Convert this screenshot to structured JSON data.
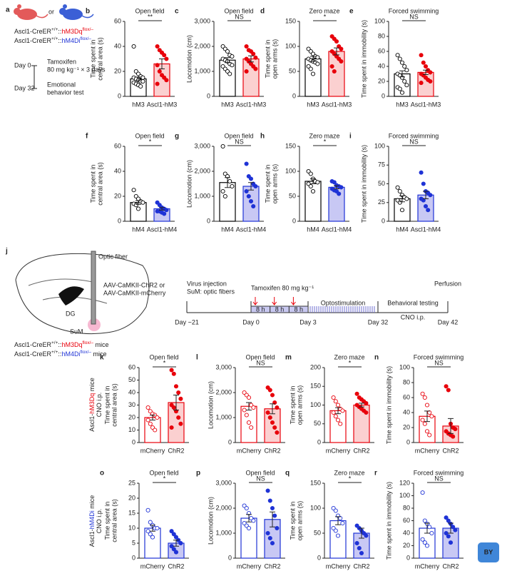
{
  "panel_a": {
    "letter": "a",
    "or": "or",
    "genotypes": [
      [
        {
          "text": "Ascl1-CreER"
        },
        {
          "text": "+/+",
          "sup": true
        },
        {
          "text": "::"
        },
        {
          "text": "hM3Dq",
          "color": "#e8000b"
        },
        {
          "text": "flox/–",
          "sup": true,
          "color": "#e8000b"
        }
      ],
      [
        {
          "text": "Ascl1-CreER"
        },
        {
          "text": "+/+",
          "sup": true
        },
        {
          "text": "::"
        },
        {
          "text": "hM4Di",
          "color": "#1f33d6"
        },
        {
          "text": "flox/–",
          "sup": true,
          "color": "#1f33d6"
        }
      ]
    ],
    "timeline": [
      {
        "day": "Day 0",
        "event": [
          "Tamoxifen",
          "80 mg kg⁻¹ × 3 days"
        ]
      },
      {
        "day": "Day 32",
        "event": [
          "Emotional",
          "behavior test"
        ]
      }
    ]
  },
  "panel_j": {
    "letter": "j",
    "optic_fiber": "Optic fiber",
    "virus": [
      "AAV-CaMKII-ChR2 or",
      "AAV-CaMKII-mCherry"
    ],
    "regions": [
      "DG",
      "SuM"
    ],
    "mice": [
      [
        {
          "text": "Ascl1-CreER"
        },
        {
          "text": "+/+",
          "sup": true
        },
        {
          "text": "::"
        },
        {
          "text": "hM3Dq",
          "color": "#e8000b"
        },
        {
          "text": "flox/–",
          "sup": true,
          "color": "#e8000b"
        },
        {
          "text": " mice"
        }
      ],
      [
        {
          "text": "Ascl1-CreER"
        },
        {
          "text": "+/+",
          "sup": true
        },
        {
          "text": "::"
        },
        {
          "text": "hM4Di",
          "color": "#1f33d6"
        },
        {
          "text": "flox/–",
          "sup": true,
          "color": "#1f33d6"
        },
        {
          "text": " mice"
        }
      ]
    ],
    "days": [
      "Day ~21",
      "Day 0",
      "Day 3",
      "Day 32",
      "Day 42"
    ],
    "blocks": [
      "8 h",
      "8 h",
      "8 h"
    ],
    "virus_injection": [
      "Virus injection",
      "SuM: optic fibers"
    ],
    "tamoxifen": "Tamoxifen 80 mg kg⁻¹",
    "optostimulation": "Optostimulation",
    "behavior": [
      "Behavioral testing",
      "CNO i.p."
    ],
    "perfusion": "Perfusion"
  },
  "row_labels": [
    [
      [
        {
          "text": "Ascl1-"
        },
        {
          "text": "hM3Dq",
          "color": "#e8000b"
        },
        {
          "text": " mice"
        }
      ],
      [
        {
          "text": "CNO i.p."
        }
      ]
    ],
    [
      [
        {
          "text": "Ascl1-"
        },
        {
          "text": "hM4Di",
          "color": "#1f33d6"
        },
        {
          "text": " mice"
        }
      ],
      [
        {
          "text": "CNO i.p."
        }
      ]
    ]
  ],
  "watermark": "BY",
  "chart_data": [
    {
      "type": "bar",
      "panel": "b",
      "title": "Open field",
      "ylabel": [
        "Time spent in",
        "central area (s)"
      ],
      "categories": [
        "hM3",
        "Ascl1-hM3"
      ],
      "values": [
        14,
        26
      ],
      "errors": [
        1.5,
        4
      ],
      "points": [
        [
          40,
          20,
          18,
          16,
          15,
          15,
          14,
          13,
          12,
          12,
          11,
          10,
          9,
          8
        ],
        [
          40,
          37,
          35,
          33,
          30,
          25,
          20,
          17,
          15,
          13,
          10
        ]
      ],
      "colors": [
        "#000000",
        "#e8000b"
      ],
      "fills": [
        "#ffffff",
        "#fbd0d0"
      ],
      "hollow": [
        true,
        false
      ],
      "ylim": [
        0,
        60
      ],
      "yticks": [
        0,
        20,
        40,
        60
      ],
      "significance": "**"
    },
    {
      "type": "bar",
      "panel": "c",
      "title": "Open field",
      "ylabel": [
        "Locomotion (cm)"
      ],
      "categories": [
        "hM3",
        "Ascl1-hM3"
      ],
      "values": [
        1450,
        1500
      ],
      "errors": [
        100,
        120
      ],
      "points": [
        [
          2000,
          1900,
          1800,
          1650,
          1600,
          1500,
          1450,
          1400,
          1300,
          1250,
          1200,
          1100,
          1000,
          900
        ],
        [
          2000,
          1850,
          1800,
          1700,
          1550,
          1500,
          1400,
          1300,
          1200,
          1100,
          1000
        ]
      ],
      "colors": [
        "#000000",
        "#e8000b"
      ],
      "fills": [
        "#ffffff",
        "#fbd0d0"
      ],
      "hollow": [
        true,
        false
      ],
      "ylim": [
        0,
        3000
      ],
      "yticks": [
        0,
        {
          "value": 1000,
          "label": "1,000"
        },
        {
          "value": 2000,
          "label": "2,000"
        },
        {
          "value": 3000,
          "label": "3,000"
        }
      ],
      "significance": "NS"
    },
    {
      "type": "bar",
      "panel": "d",
      "title": "Zero maze",
      "ylabel": [
        "Time spent in",
        "open arms (s)"
      ],
      "categories": [
        "hM3",
        "Ascl1-hM3"
      ],
      "values": [
        75,
        90
      ],
      "errors": [
        5,
        7
      ],
      "points": [
        [
          95,
          90,
          85,
          80,
          78,
          75,
          72,
          70,
          68,
          65,
          60,
          55,
          45
        ],
        [
          120,
          115,
          110,
          100,
          95,
          90,
          85,
          80,
          75,
          70,
          60,
          50
        ]
      ],
      "colors": [
        "#000000",
        "#e8000b"
      ],
      "fills": [
        "#ffffff",
        "#fbd0d0"
      ],
      "hollow": [
        true,
        false
      ],
      "ylim": [
        0,
        150
      ],
      "yticks": [
        0,
        50,
        100,
        150
      ],
      "significance": "*"
    },
    {
      "type": "bar",
      "panel": "e",
      "title": "Forced swimming",
      "ylabel": [
        "Time spent in immobility (s)"
      ],
      "categories": [
        "hM3",
        "Ascl1-hM3"
      ],
      "values": [
        30,
        32
      ],
      "errors": [
        4,
        3
      ],
      "points": [
        [
          55,
          50,
          45,
          40,
          35,
          30,
          28,
          25,
          20,
          15,
          12,
          10,
          5
        ],
        [
          55,
          45,
          40,
          35,
          32,
          30,
          28,
          25,
          22,
          20,
          18
        ]
      ],
      "colors": [
        "#000000",
        "#e8000b"
      ],
      "fills": [
        "#ffffff",
        "#fbd0d0"
      ],
      "hollow": [
        true,
        false
      ],
      "ylim": [
        0,
        100
      ],
      "yticks": [
        0,
        20,
        40,
        60,
        80,
        100
      ],
      "significance": "NS"
    },
    {
      "type": "bar",
      "panel": "f",
      "title": "Open field",
      "ylabel": [
        "Time spent in",
        "central area (s)"
      ],
      "categories": [
        "hM4",
        "Ascl1-hM4"
      ],
      "values": [
        15,
        10
      ],
      "errors": [
        1.5,
        1
      ],
      "points": [
        [
          25,
          20,
          18,
          16,
          15,
          14,
          13,
          10
        ],
        [
          15,
          13,
          11,
          10,
          9,
          8,
          8,
          7,
          6
        ]
      ],
      "colors": [
        "#000000",
        "#1f33d6"
      ],
      "fills": [
        "#ffffff",
        "#c8c8f4"
      ],
      "hollow": [
        true,
        false
      ],
      "ylim": [
        0,
        60
      ],
      "yticks": [
        0,
        20,
        40,
        60
      ],
      "significance": "*"
    },
    {
      "type": "bar",
      "panel": "g",
      "title": "Open field",
      "ylabel": [
        "Locomotion (cm)"
      ],
      "categories": [
        "hM4",
        "Ascl1-hM4"
      ],
      "values": [
        1550,
        1400
      ],
      "errors": [
        200,
        150
      ],
      "points": [
        [
          3000,
          1900,
          1800,
          1600,
          1400,
          1200,
          1000
        ],
        [
          2300,
          1800,
          1700,
          1500,
          1400,
          1200,
          1000,
          800,
          600
        ]
      ],
      "colors": [
        "#000000",
        "#1f33d6"
      ],
      "fills": [
        "#ffffff",
        "#c8c8f4"
      ],
      "hollow": [
        true,
        false
      ],
      "ylim": [
        0,
        3000
      ],
      "yticks": [
        0,
        {
          "value": 1000,
          "label": "1,000"
        },
        {
          "value": 2000,
          "label": "2,000"
        },
        {
          "value": 3000,
          "label": "3,000"
        }
      ],
      "significance": "NS"
    },
    {
      "type": "bar",
      "panel": "h",
      "title": "Zero maze",
      "ylabel": [
        "Time spent in",
        "open arms (s)"
      ],
      "categories": [
        "hM4",
        "Ascl1-hM4"
      ],
      "values": [
        80,
        68
      ],
      "errors": [
        5,
        3
      ],
      "points": [
        [
          100,
          95,
          85,
          80,
          78,
          75,
          70,
          60
        ],
        [
          80,
          78,
          72,
          70,
          68,
          65,
          62,
          60,
          55
        ]
      ],
      "colors": [
        "#000000",
        "#1f33d6"
      ],
      "fills": [
        "#ffffff",
        "#c8c8f4"
      ],
      "hollow": [
        true,
        false
      ],
      "ylim": [
        0,
        150
      ],
      "yticks": [
        0,
        50,
        100,
        150
      ],
      "significance": "*"
    },
    {
      "type": "bar",
      "panel": "i",
      "title": "Forced swimming",
      "ylabel": [
        "Time spent in immobility (s)"
      ],
      "categories": [
        "hM4",
        "Ascl1-hM4"
      ],
      "values": [
        30,
        35
      ],
      "errors": [
        4,
        5
      ],
      "points": [
        [
          45,
          40,
          35,
          32,
          30,
          28,
          25,
          15
        ],
        [
          65,
          50,
          40,
          38,
          35,
          30,
          28,
          20,
          15
        ]
      ],
      "colors": [
        "#000000",
        "#1f33d6"
      ],
      "fills": [
        "#ffffff",
        "#c8c8f4"
      ],
      "hollow": [
        true,
        false
      ],
      "ylim": [
        0,
        100
      ],
      "yticks": [
        0,
        25,
        50,
        75,
        100
      ],
      "significance": "NS"
    },
    {
      "type": "bar",
      "panel": "k",
      "title": "Open field",
      "ylabel": [
        "Time spent in",
        "central area (s)"
      ],
      "categories": [
        "mCherry",
        "ChR2"
      ],
      "values": [
        20,
        32
      ],
      "errors": [
        2,
        6
      ],
      "points": [
        [
          28,
          25,
          23,
          22,
          20,
          18,
          15,
          12,
          10
        ],
        [
          58,
          55,
          45,
          40,
          35,
          30,
          28,
          25,
          20,
          15,
          12
        ]
      ],
      "colors": [
        "#e8000b",
        "#e8000b"
      ],
      "fills": [
        "#ffffff",
        "#fbd0d0"
      ],
      "hollow": [
        true,
        false
      ],
      "ylim": [
        0,
        60
      ],
      "yticks": [
        0,
        10,
        20,
        30,
        40,
        50,
        60
      ],
      "significance": "*"
    },
    {
      "type": "bar",
      "panel": "l",
      "title": "Open field",
      "ylabel": [
        "Locomotion (cm)"
      ],
      "categories": [
        "mCherry",
        "ChR2"
      ],
      "values": [
        1450,
        1350
      ],
      "errors": [
        150,
        200
      ],
      "points": [
        [
          2000,
          1900,
          1800,
          1500,
          1400,
          1300,
          1100,
          800,
          600
        ],
        [
          2200,
          2100,
          1900,
          1600,
          1400,
          1200,
          1000,
          800,
          600,
          400
        ]
      ],
      "colors": [
        "#e8000b",
        "#e8000b"
      ],
      "fills": [
        "#ffffff",
        "#fbd0d0"
      ],
      "hollow": [
        true,
        false
      ],
      "ylim": [
        0,
        3000
      ],
      "yticks": [
        0,
        {
          "value": 1000,
          "label": "1,000"
        },
        {
          "value": 2000,
          "label": "2,000"
        },
        {
          "value": 3000,
          "label": "3,000"
        }
      ],
      "significance": "NS"
    },
    {
      "type": "bar",
      "panel": "m",
      "title": "Zero maze",
      "ylabel": [
        "Time spent in",
        "open arms (s)"
      ],
      "categories": [
        "mCherry",
        "ChR2"
      ],
      "values": [
        85,
        100
      ],
      "errors": [
        8,
        5
      ],
      "points": [
        [
          120,
          110,
          100,
          90,
          85,
          80,
          70,
          60,
          50
        ],
        [
          130,
          120,
          115,
          110,
          105,
          100,
          95,
          90,
          85,
          80
        ]
      ],
      "colors": [
        "#e8000b",
        "#e8000b"
      ],
      "fills": [
        "#ffffff",
        "#fbd0d0"
      ],
      "hollow": [
        true,
        false
      ],
      "ylim": [
        0,
        200
      ],
      "yticks": [
        0,
        50,
        100,
        150,
        200
      ],
      "significance": "*"
    },
    {
      "type": "bar",
      "panel": "n",
      "title": "Forced swimming",
      "ylabel": [
        "Time spent in immobility (s)"
      ],
      "categories": [
        "mCherry",
        "ChR2"
      ],
      "values": [
        35,
        22
      ],
      "errors": [
        7,
        10
      ],
      "points": [
        [
          65,
          60,
          50,
          40,
          35,
          30,
          25,
          15,
          10
        ],
        [
          75,
          70,
          25,
          20,
          18,
          15,
          12,
          10,
          8
        ]
      ],
      "colors": [
        "#e8000b",
        "#e8000b"
      ],
      "fills": [
        "#ffffff",
        "#fbd0d0"
      ],
      "hollow": [
        true,
        false
      ],
      "ylim": [
        0,
        100
      ],
      "yticks": [
        0,
        20,
        40,
        60,
        80,
        100
      ],
      "significance": "NS"
    },
    {
      "type": "bar",
      "panel": "o",
      "title": "Open field",
      "ylabel": [
        "Time spent in",
        "central area (s)"
      ],
      "categories": [
        "mCherry",
        "ChR2"
      ],
      "values": [
        10,
        5
      ],
      "errors": [
        1,
        1
      ],
      "points": [
        [
          16,
          12,
          11,
          10,
          10,
          9,
          8,
          7
        ],
        [
          9,
          8,
          7,
          6,
          5,
          4,
          3,
          2
        ]
      ],
      "colors": [
        "#1f33d6",
        "#1f33d6"
      ],
      "fills": [
        "#ffffff",
        "#c8c8f4"
      ],
      "hollow": [
        true,
        false
      ],
      "ylim": [
        0,
        25
      ],
      "yticks": [
        0,
        5,
        10,
        15,
        20,
        25
      ],
      "significance": "*"
    },
    {
      "type": "bar",
      "panel": "p",
      "title": "Open field",
      "ylabel": [
        "Locomotion (cm)"
      ],
      "categories": [
        "mCherry",
        "ChR2"
      ],
      "values": [
        1600,
        1550
      ],
      "errors": [
        150,
        300
      ],
      "points": [
        [
          2100,
          2000,
          1800,
          1600,
          1500,
          1400,
          1300,
          1200
        ],
        [
          2700,
          2300,
          2000,
          1700,
          1200,
          1000,
          800,
          600
        ]
      ],
      "colors": [
        "#1f33d6",
        "#1f33d6"
      ],
      "fills": [
        "#ffffff",
        "#c8c8f4"
      ],
      "hollow": [
        true,
        false
      ],
      "ylim": [
        0,
        3000
      ],
      "yticks": [
        0,
        {
          "value": 1000,
          "label": "1,000"
        },
        {
          "value": 2000,
          "label": "2,000"
        },
        {
          "value": 3000,
          "label": "3,000"
        }
      ],
      "significance": "NS"
    },
    {
      "type": "bar",
      "panel": "q",
      "title": "Zero maze",
      "ylabel": [
        "Time spent in",
        "open arms (s)"
      ],
      "categories": [
        "mCherry",
        "ChR2"
      ],
      "values": [
        75,
        50
      ],
      "errors": [
        8,
        10
      ],
      "points": [
        [
          100,
          95,
          85,
          80,
          70,
          60,
          55,
          45
        ],
        [
          65,
          60,
          55,
          50,
          45,
          30,
          20,
          10
        ]
      ],
      "colors": [
        "#1f33d6",
        "#1f33d6"
      ],
      "fills": [
        "#ffffff",
        "#c8c8f4"
      ],
      "hollow": [
        true,
        false
      ],
      "ylim": [
        0,
        150
      ],
      "yticks": [
        0,
        50,
        100,
        150
      ],
      "significance": "*"
    },
    {
      "type": "bar",
      "panel": "r",
      "title": "Forced swimming",
      "ylabel": [
        "Time spent in immobility (s)"
      ],
      "categories": [
        "mCherry",
        "ChR2"
      ],
      "values": [
        48,
        48
      ],
      "errors": [
        8,
        8
      ],
      "points": [
        [
          105,
          60,
          55,
          50,
          40,
          30,
          25,
          20
        ],
        [
          65,
          60,
          55,
          50,
          45,
          40,
          35,
          25
        ]
      ],
      "colors": [
        "#1f33d6",
        "#1f33d6"
      ],
      "fills": [
        "#ffffff",
        "#c8c8f4"
      ],
      "hollow": [
        true,
        false
      ],
      "ylim": [
        0,
        120
      ],
      "yticks": [
        0,
        20,
        40,
        60,
        80,
        100,
        120
      ],
      "significance": "NS"
    }
  ]
}
